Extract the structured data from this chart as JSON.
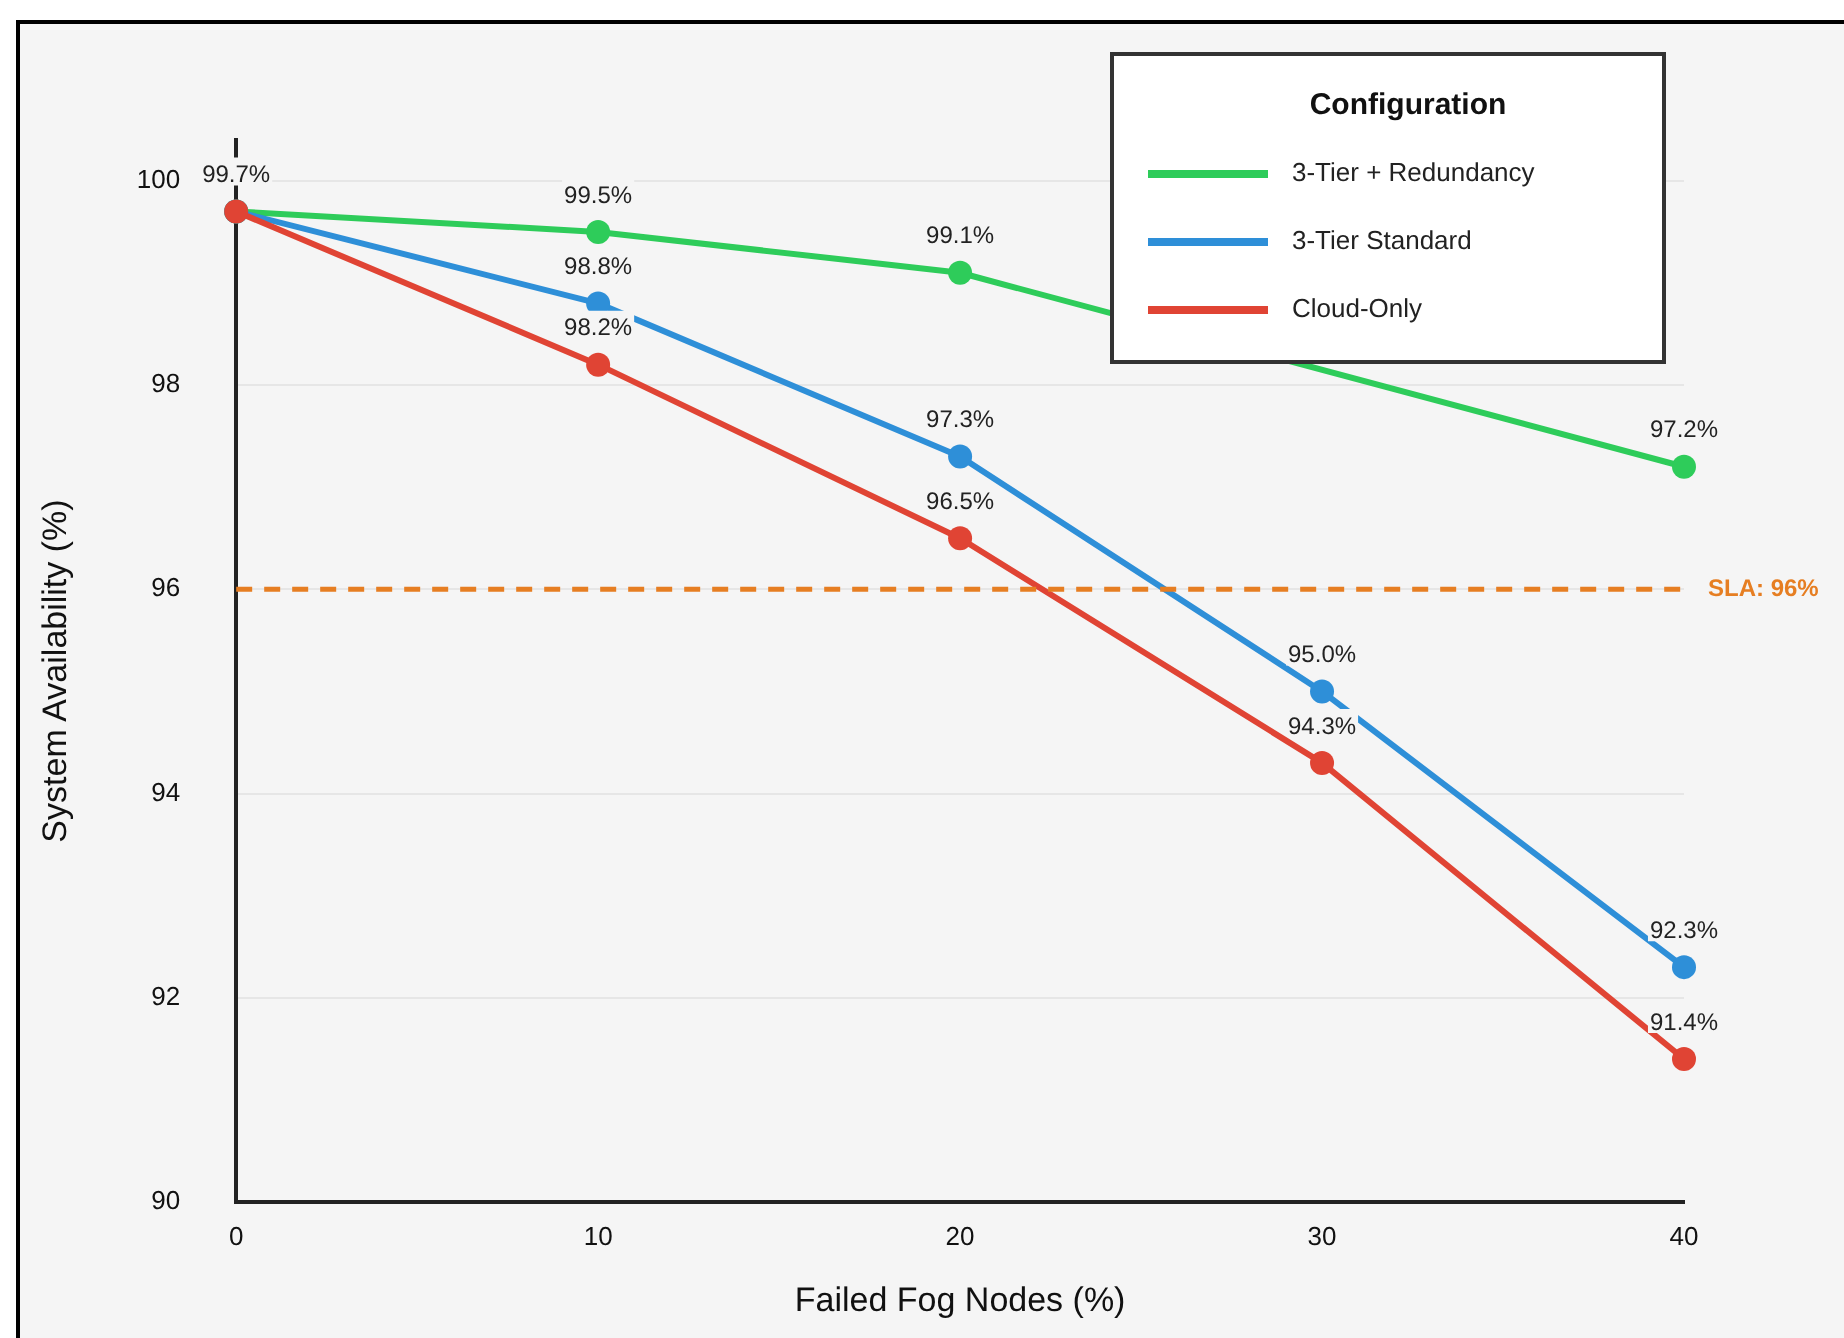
{
  "chart_data": {
    "type": "line",
    "xlabel": "Failed Fog Nodes (%)",
    "ylabel": "System Availability (%)",
    "legend_title": "Configuration",
    "x": [
      0,
      10,
      20,
      30,
      40
    ],
    "xlim": [
      0,
      40
    ],
    "xticks": [
      0,
      10,
      20,
      30,
      40
    ],
    "ylim": [
      90,
      100.4
    ],
    "yticks": [
      90,
      92,
      94,
      96,
      98,
      100
    ],
    "grid": "y",
    "legend": "top right",
    "marker": "circle",
    "line_style": "solid",
    "series": [
      {
        "name": "3-Tier + Redundancy",
        "color": "#2ecc5a",
        "values": [
          99.7,
          99.5,
          99.1,
          null,
          97.2
        ],
        "value_labels": [
          null,
          "99.5%",
          "99.1%",
          null,
          "97.2%"
        ]
      },
      {
        "name": "3-Tier Standard",
        "color": "#2e8fd8",
        "values": [
          99.7,
          98.8,
          97.3,
          95.0,
          92.3
        ],
        "value_labels": [
          null,
          "98.8%",
          "97.3%",
          "95.0%",
          "92.3%"
        ]
      },
      {
        "name": "Cloud-Only",
        "color": "#e04434",
        "values": [
          99.7,
          98.2,
          96.5,
          94.3,
          91.4
        ],
        "value_labels": [
          "99.7%",
          "98.2%",
          "96.5%",
          "94.3%",
          "91.4%"
        ]
      }
    ],
    "ref_lines": [
      {
        "axis": "y",
        "value": 96,
        "label": "SLA: 96%",
        "color": "#e67e22",
        "line_style": "dashed"
      }
    ]
  }
}
